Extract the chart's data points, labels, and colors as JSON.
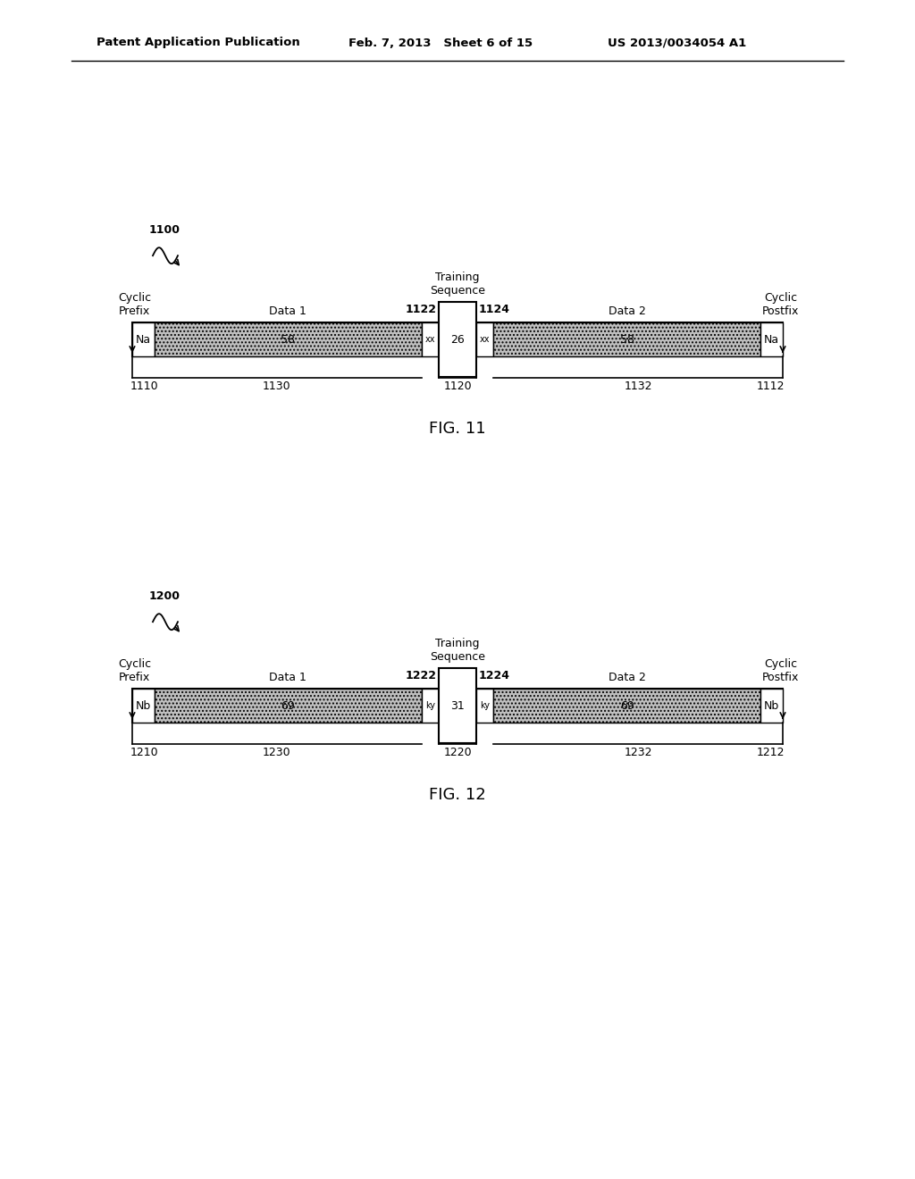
{
  "bg_color": "#ffffff",
  "header_left": "Patent Application Publication",
  "header_mid": "Feb. 7, 2013   Sheet 6 of 15",
  "header_right": "US 2013/0034054 A1",
  "fig11": {
    "label": "1100",
    "fig_label": "FIG. 11",
    "training_seq_label": "Training\nSequence",
    "cyclic_prefix_label": "Cyclic\nPrefix",
    "cyclic_postfix_label": "Cyclic\nPostfix",
    "data1_label": "Data 1",
    "data2_label": "Data 2",
    "na_left": "Na",
    "na_right": "Na",
    "val_data1": "58",
    "val_data2": "58",
    "val_ts": "26",
    "left_xx": "xx",
    "right_xx": "xx",
    "bracket_left": "1110",
    "bracket_right": "1112",
    "bracket_mid": "1120",
    "label_left_span": "1130",
    "label_right_span": "1132",
    "label_ts_left": "1122",
    "label_ts_right": "1124"
  },
  "fig12": {
    "label": "1200",
    "fig_label": "FIG. 12",
    "training_seq_label": "Training\nSequence",
    "cyclic_prefix_label": "Cyclic\nPrefix",
    "cyclic_postfix_label": "Cyclic\nPostfix",
    "data1_label": "Data 1",
    "data2_label": "Data 2",
    "na_left": "Nb",
    "na_right": "Nb",
    "val_data1": "69",
    "val_data2": "69",
    "val_ts": "31",
    "left_xx": "ky",
    "right_xx": "ky",
    "bracket_left": "1210",
    "bracket_right": "1212",
    "bracket_mid": "1220",
    "label_left_span": "1230",
    "label_right_span": "1232",
    "label_ts_left": "1222",
    "label_ts_right": "1224"
  },
  "text_color": "#000000"
}
